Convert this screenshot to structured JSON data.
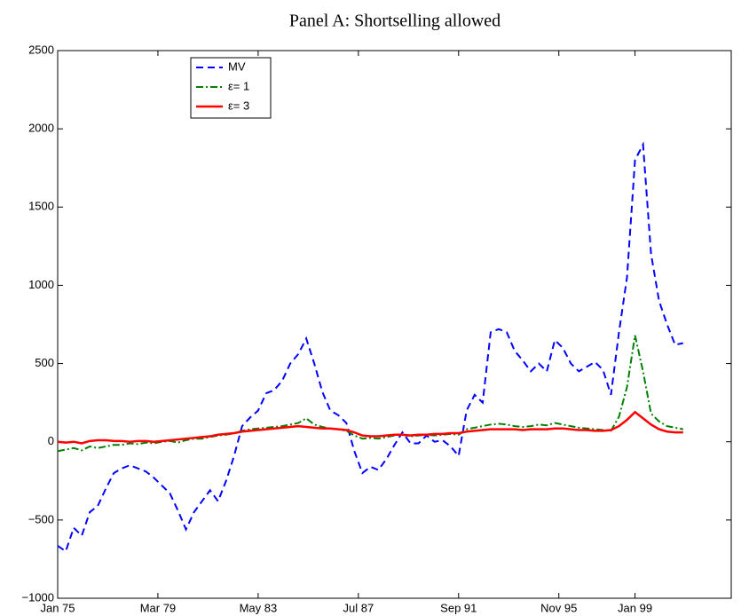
{
  "chart_data": {
    "type": "line",
    "title": "Panel A: Shortselling allowed",
    "x": [
      "Jan 75",
      "May 75",
      "Sep 75",
      "Jan 76",
      "May 76",
      "Sep 76",
      "Jan 77",
      "May 77",
      "Sep 77",
      "Jan 78",
      "May 78",
      "Sep 78",
      "Jan 79",
      "May 79",
      "Sep 79",
      "Jan 80",
      "May 80",
      "Sep 80",
      "Jan 81",
      "May 81",
      "Sep 81",
      "Jan 82",
      "May 82",
      "Sep 82",
      "Jan 83",
      "May 83",
      "Sep 83",
      "Jan 84",
      "May 84",
      "Sep 84",
      "Jan 85",
      "May 85",
      "Sep 85",
      "Jan 86",
      "May 86",
      "Sep 86",
      "Jan 87",
      "May 87",
      "Sep 87",
      "Jan 88",
      "May 88",
      "Sep 88",
      "Jan 89",
      "May 89",
      "Sep 89",
      "Jan 90",
      "May 90",
      "Sep 90",
      "Jan 91",
      "May 91",
      "Sep 91",
      "Jan 92",
      "May 92",
      "Sep 92",
      "Jan 93",
      "May 93",
      "Sep 93",
      "Jan 94",
      "May 94",
      "Sep 94",
      "Jan 95",
      "May 95",
      "Sep 95",
      "Jan 96",
      "May 96",
      "Sep 96",
      "Jan 97",
      "May 97",
      "Sep 97",
      "Jan 98",
      "May 98",
      "Sep 98",
      "Jan 99",
      "May 99",
      "Sep 99",
      "Jan 00",
      "May 00",
      "Sep 00",
      "Jan 01"
    ],
    "series": [
      {
        "name": "MV",
        "color": "#0000ff",
        "dash": "dashed",
        "values": [
          -665,
          -700,
          -550,
          -600,
          -450,
          -410,
          -300,
          -200,
          -170,
          -150,
          -170,
          -190,
          -230,
          -280,
          -330,
          -440,
          -560,
          -450,
          -380,
          -310,
          -380,
          -250,
          -90,
          100,
          155,
          200,
          310,
          330,
          390,
          500,
          560,
          660,
          500,
          320,
          200,
          170,
          120,
          -60,
          -200,
          -160,
          -180,
          -110,
          -20,
          60,
          -10,
          -10,
          40,
          0,
          10,
          -30,
          -90,
          200,
          300,
          250,
          700,
          720,
          700,
          580,
          520,
          450,
          500,
          450,
          650,
          600,
          500,
          450,
          480,
          510,
          460,
          300,
          700,
          1050,
          1800,
          1900,
          1200,
          900,
          750,
          620,
          630
        ]
      },
      {
        "name": "ε= 1",
        "color": "#008000",
        "dash": "dashdot",
        "values": [
          -60,
          -50,
          -40,
          -55,
          -30,
          -40,
          -30,
          -20,
          -20,
          -10,
          -15,
          -5,
          -10,
          0,
          5,
          -5,
          10,
          20,
          20,
          30,
          40,
          45,
          55,
          70,
          80,
          85,
          90,
          95,
          100,
          110,
          120,
          150,
          110,
          95,
          85,
          80,
          70,
          40,
          20,
          25,
          20,
          30,
          40,
          45,
          35,
          40,
          45,
          40,
          45,
          50,
          45,
          80,
          90,
          100,
          110,
          115,
          110,
          100,
          95,
          100,
          110,
          105,
          120,
          110,
          100,
          90,
          85,
          80,
          75,
          70,
          160,
          350,
          680,
          450,
          180,
          130,
          100,
          90,
          80
        ]
      },
      {
        "name": "ε= 3",
        "color": "#ff0000",
        "dash": "solid",
        "values": [
          0,
          -5,
          0,
          -10,
          5,
          10,
          10,
          5,
          5,
          0,
          5,
          5,
          0,
          5,
          10,
          15,
          20,
          25,
          30,
          35,
          45,
          50,
          55,
          65,
          70,
          75,
          80,
          85,
          90,
          95,
          100,
          95,
          90,
          85,
          85,
          80,
          75,
          60,
          40,
          35,
          35,
          40,
          45,
          45,
          40,
          45,
          45,
          50,
          50,
          55,
          55,
          65,
          70,
          75,
          80,
          80,
          80,
          80,
          75,
          80,
          80,
          80,
          85,
          85,
          80,
          75,
          75,
          70,
          70,
          75,
          100,
          140,
          190,
          150,
          110,
          80,
          65,
          60,
          60
        ]
      }
    ],
    "xlim": [
      "Jan 75",
      "Jan 03"
    ],
    "xticks": [
      "Jan 75",
      "Mar 79",
      "May 83",
      "Jul 87",
      "Sep 91",
      "Nov 95",
      "Jan 99"
    ],
    "ylim": [
      -1000,
      2500
    ],
    "yticks": [
      {
        "value": -1000,
        "label": "−1000"
      },
      {
        "value": -500,
        "label": "−500"
      },
      0,
      500,
      1000,
      1500,
      2000,
      2500
    ],
    "grid": false,
    "legend": "upper left"
  }
}
